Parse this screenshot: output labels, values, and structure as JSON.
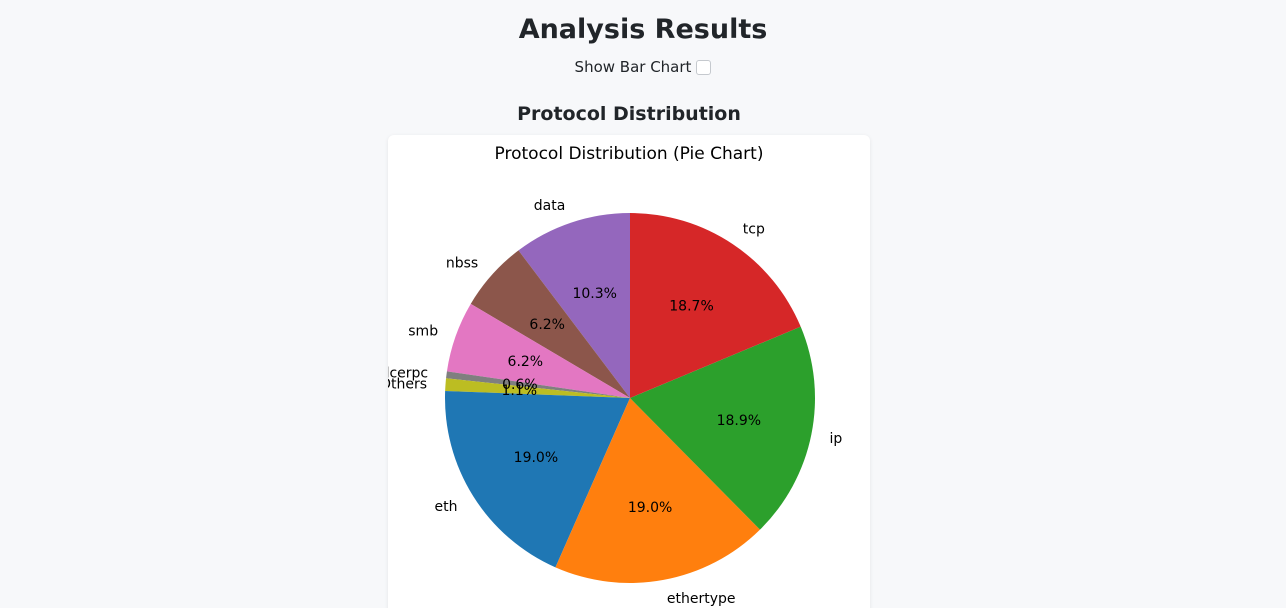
{
  "page": {
    "title": "Analysis Results",
    "toggle_label": "Show Bar Chart",
    "section_title": "Protocol Distribution"
  },
  "chart_data": {
    "type": "pie",
    "title": "Protocol Distribution (Pie Chart)",
    "start_angle_deg": 90,
    "direction": "counterclockwise",
    "slices": [
      {
        "label": "data",
        "percent_label": "10.3%",
        "value": 10.3,
        "color": "#9467bd"
      },
      {
        "label": "nbss",
        "percent_label": "6.2%",
        "value": 6.2,
        "color": "#8c564b"
      },
      {
        "label": "smb",
        "percent_label": "6.2%",
        "value": 6.2,
        "color": "#e377c2"
      },
      {
        "label": "dcerpc",
        "percent_label": "0.6%",
        "value": 0.6,
        "color": "#7f7f7f"
      },
      {
        "label": "Others",
        "percent_label": "1.1%",
        "value": 1.1,
        "color": "#bcbd22"
      },
      {
        "label": "eth",
        "percent_label": "19.0%",
        "value": 19.0,
        "color": "#1f77b4"
      },
      {
        "label": "ethertype",
        "percent_label": "19.0%",
        "value": 19.0,
        "color": "#ff7f0e"
      },
      {
        "label": "ip",
        "percent_label": "18.9%",
        "value": 18.9,
        "color": "#2ca02c"
      },
      {
        "label": "tcp",
        "percent_label": "18.7%",
        "value": 18.7,
        "color": "#d62728"
      }
    ]
  }
}
